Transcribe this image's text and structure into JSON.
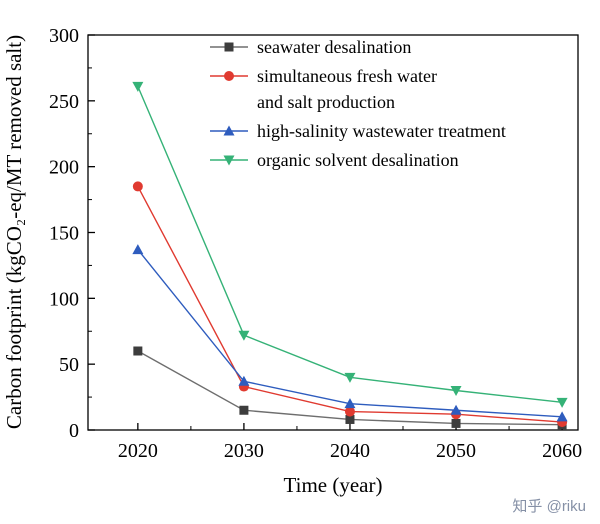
{
  "watermark": "知乎 @riku",
  "chart_data": {
    "type": "line",
    "title": "",
    "xlabel": "Time (year)",
    "ylabel": "Carbon footprint (kgCO₂-eq/MT removed salt)",
    "x": [
      2020,
      2030,
      2040,
      2050,
      2060
    ],
    "xticks": [
      2020,
      2030,
      2040,
      2050,
      2060
    ],
    "yticks": [
      0,
      50,
      100,
      150,
      200,
      250,
      300
    ],
    "xlim": [
      2015.3,
      2061.5
    ],
    "ylim": [
      0,
      300
    ],
    "x_minor_step": 5,
    "y_minor_step": 25,
    "grid": false,
    "legend_position": "inside top-center",
    "series": [
      {
        "name": "seawater desalination",
        "legend_lines": [
          "seawater desalination"
        ],
        "marker": "square",
        "color": "#3d3d3d",
        "line_color": "#6e6e6e",
        "values": [
          60,
          15,
          8,
          5,
          4
        ]
      },
      {
        "name": "simultaneous fresh water and salt production",
        "legend_lines": [
          "simultaneous fresh water",
          "and salt production"
        ],
        "marker": "circle",
        "color": "#e03a30",
        "line_color": "#e03a30",
        "values": [
          185,
          33,
          14,
          12,
          6
        ]
      },
      {
        "name": "high-salinity wastewater treatment",
        "legend_lines": [
          "high-salinity wastewater treatment"
        ],
        "marker": "triangle-up",
        "color": "#2e5cbe",
        "line_color": "#2e5cbe",
        "values": [
          137,
          37,
          20,
          15,
          10
        ]
      },
      {
        "name": "organic solvent desalination",
        "legend_lines": [
          "organic solvent desalination"
        ],
        "marker": "triangle-down",
        "color": "#35b277",
        "line_color": "#35b277",
        "values": [
          261,
          72,
          40,
          30,
          21
        ]
      }
    ]
  }
}
